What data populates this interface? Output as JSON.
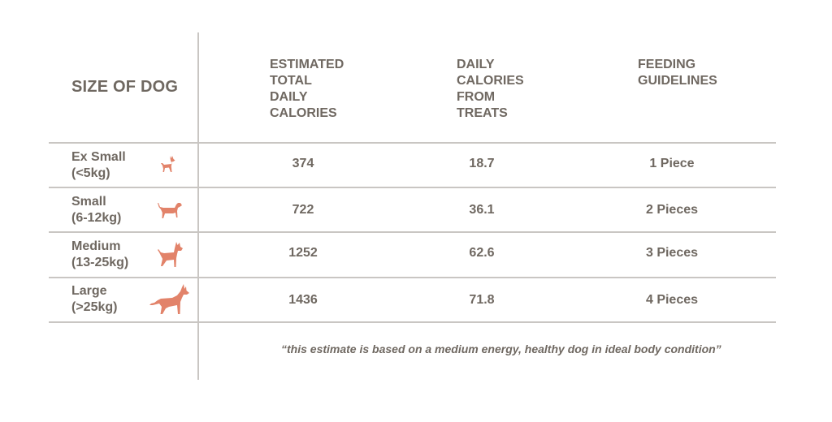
{
  "header": {
    "size_of_dog": "SIZE OF DOG",
    "estimated": [
      "ESTIMATED",
      "TOTAL",
      "DAILY",
      "CALORIES"
    ],
    "treats": [
      "DAILY",
      "CALORIES",
      "FROM",
      "TREATS"
    ],
    "guidelines": [
      "FEEDING",
      "GUIDELINES"
    ]
  },
  "rows": [
    {
      "size": "Ex Small",
      "range": "(<5kg)",
      "calories": "374",
      "treats": "18.7",
      "guideline": "1 Piece",
      "icon": "chihuahua-icon"
    },
    {
      "size": "Small",
      "range": "(6-12kg)",
      "calories": "722",
      "treats": "36.1",
      "guideline": "2 Pieces",
      "icon": "beagle-icon"
    },
    {
      "size": "Medium",
      "range": "(13-25kg)",
      "calories": "1252",
      "treats": "62.6",
      "guideline": "3 Pieces",
      "icon": "boxer-icon"
    },
    {
      "size": "Large",
      "range": "(>25kg)",
      "calories": "1436",
      "treats": "71.8",
      "guideline": "4 Pieces",
      "icon": "shepherd-icon"
    }
  ],
  "footnote": "“this estimate is based on a medium energy, healthy dog in ideal body condition”",
  "colors": {
    "text": "#6f6861",
    "rule": "#c9c6c3",
    "dog": "#e2836a"
  }
}
